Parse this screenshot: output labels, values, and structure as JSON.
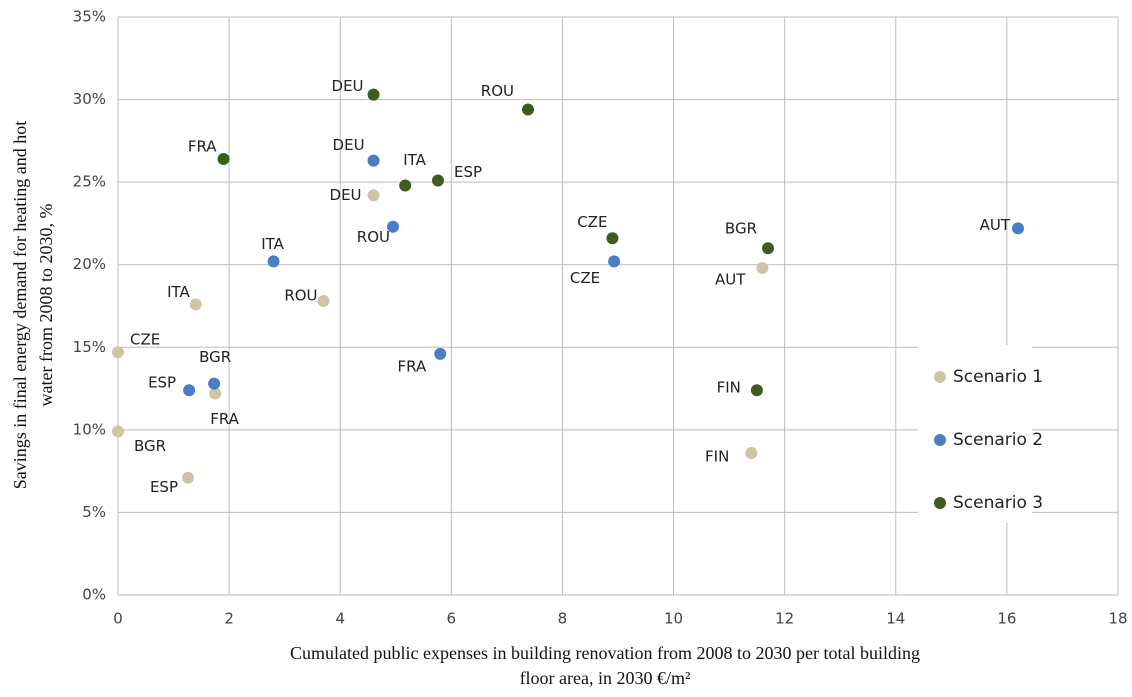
{
  "chart_data": {
    "type": "scatter",
    "xlabel": [
      "Cumulated public expenses in  building renovation  from 2008 to 2030 per total building",
      "floor area, in 2030 €/m²"
    ],
    "ylabel": [
      "Savings in final energy demand for heating and hot",
      "water from 2008 to 2030, %"
    ],
    "xlim": [
      0,
      18
    ],
    "xticks": [
      0,
      2,
      4,
      6,
      8,
      10,
      12,
      14,
      16,
      18
    ],
    "ylim": [
      0,
      35
    ],
    "yticks": [
      {
        "value": 0,
        "label": "0%"
      },
      {
        "value": 5,
        "label": "5%"
      },
      {
        "value": 10,
        "label": "10%"
      },
      {
        "value": 15,
        "label": "15%"
      },
      {
        "value": 20,
        "label": "20%"
      },
      {
        "value": 25,
        "label": "25%"
      },
      {
        "value": 30,
        "label": "30%"
      },
      {
        "value": 35,
        "label": "35%"
      }
    ],
    "grid": true,
    "legend": "right",
    "series": [
      {
        "name": "Scenario 1",
        "color": "#cdc5a5",
        "labels": [
          "CZE",
          "BGR",
          "ITA",
          "FRA",
          "ESP",
          "ROU",
          "DEU",
          "AUT",
          "FIN"
        ],
        "x": [
          0,
          0,
          1.4,
          1.75,
          1.26,
          3.7,
          4.6,
          11.6,
          11.4
        ],
        "values": [
          14.7,
          9.9,
          17.6,
          12.2,
          7.1,
          17.8,
          24.2,
          19.8,
          8.6
        ]
      },
      {
        "name": "Scenario 2",
        "color": "#4a7ec4",
        "labels": [
          "ESP",
          "BGR",
          "ITA",
          "DEU",
          "ROU",
          "FRA",
          "CZE",
          "AUT"
        ],
        "x": [
          1.28,
          1.73,
          2.8,
          4.6,
          4.95,
          5.8,
          8.93,
          16.2
        ],
        "values": [
          12.4,
          12.8,
          20.2,
          26.3,
          22.3,
          14.6,
          20.2,
          22.2
        ]
      },
      {
        "name": "Scenario 3",
        "color": "#3d5c1e",
        "labels": [
          "FRA",
          "DEU",
          "ITA",
          "ESP",
          "ROU",
          "CZE",
          "BGR",
          "FIN"
        ],
        "x": [
          1.9,
          4.6,
          5.17,
          5.76,
          7.38,
          8.9,
          11.7,
          11.5
        ],
        "values": [
          26.4,
          30.3,
          24.8,
          25.1,
          29.4,
          21.6,
          21.0,
          12.4
        ]
      }
    ]
  }
}
